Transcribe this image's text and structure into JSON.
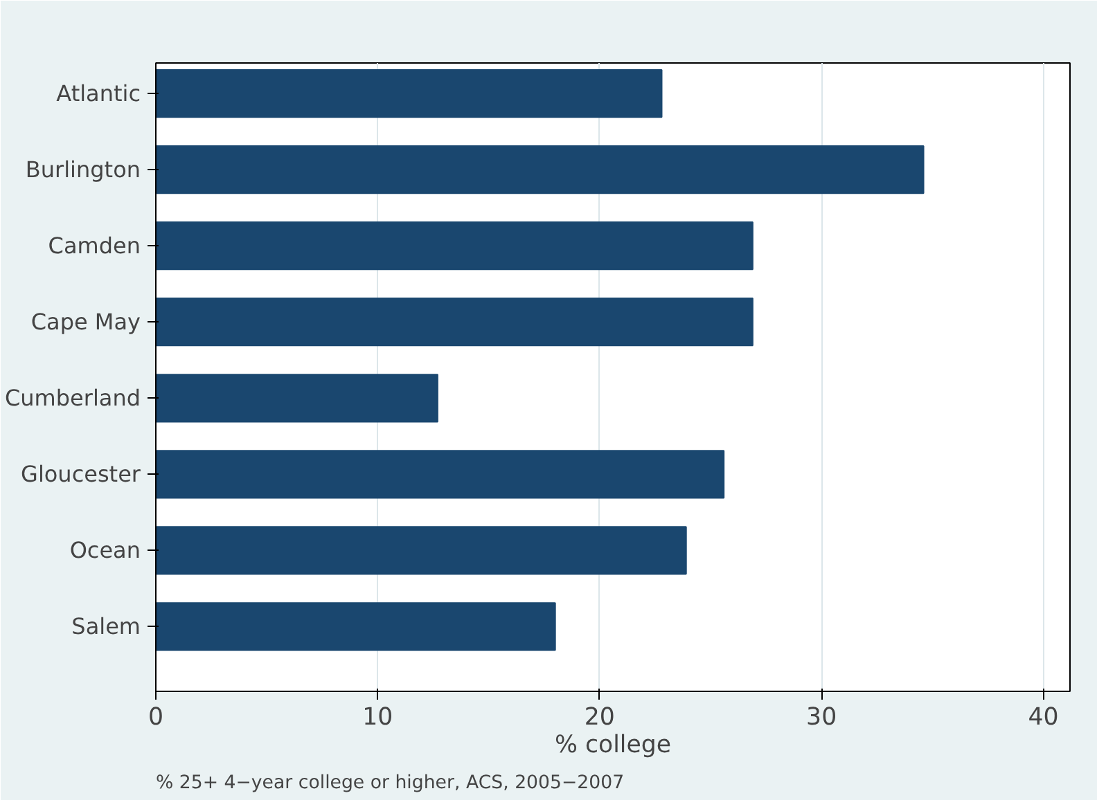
{
  "chart_data": {
    "type": "bar",
    "orientation": "horizontal",
    "xlabel": "% college",
    "categories": [
      "Atlantic",
      "Burlington",
      "Camden",
      "Cape May",
      "Cumberland",
      "Gloucester",
      "Ocean",
      "Salem"
    ],
    "values": [
      22.8,
      34.6,
      26.9,
      26.9,
      12.7,
      25.6,
      23.9,
      18.0
    ],
    "color": "#1a476f",
    "xlim": [
      0,
      41.2
    ],
    "xticks": [
      0,
      10,
      20,
      30,
      40
    ],
    "grid": "x",
    "annotations": [
      "% 25+ 4−year college or higher, ACS, 2005−2007"
    ]
  }
}
